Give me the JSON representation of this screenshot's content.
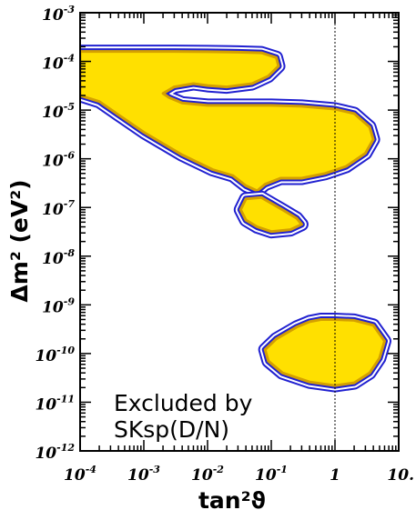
{
  "chart_data": {
    "type": "contour",
    "title": "",
    "xlabel": "tan²ϑ",
    "ylabel": "Δm² (eV²)",
    "x_scale": "log",
    "y_scale": "log",
    "xlim": [
      0.0001,
      10
    ],
    "ylim": [
      1e-12,
      0.001
    ],
    "x_ticks": [
      {
        "value": 0.0001,
        "base": "10",
        "exp": "-4"
      },
      {
        "value": 0.001,
        "base": "10",
        "exp": "-3"
      },
      {
        "value": 0.01,
        "base": "10",
        "exp": "-2"
      },
      {
        "value": 0.1,
        "base": "10",
        "exp": "-1"
      },
      {
        "value": 1,
        "base": "1",
        "exp": ""
      },
      {
        "value": 10,
        "base": "10.",
        "exp": ""
      }
    ],
    "y_ticks": [
      {
        "value": 1e-12,
        "base": "10",
        "exp": "-12"
      },
      {
        "value": 1e-11,
        "base": "10",
        "exp": "-11"
      },
      {
        "value": 1e-10,
        "base": "10",
        "exp": "-10"
      },
      {
        "value": 1e-09,
        "base": "10",
        "exp": "-9"
      },
      {
        "value": 1e-08,
        "base": "10",
        "exp": "-8"
      },
      {
        "value": 1e-07,
        "base": "10",
        "exp": "-7"
      },
      {
        "value": 1e-06,
        "base": "10",
        "exp": "-6"
      },
      {
        "value": 1e-05,
        "base": "10",
        "exp": "-5"
      },
      {
        "value": 0.0001,
        "base": "10",
        "exp": "-4"
      },
      {
        "value": 0.001,
        "base": "10",
        "exp": "-3"
      }
    ],
    "reference_line": {
      "axis": "x",
      "value": 1,
      "style": "dotted"
    },
    "annotation_lines": [
      "Excluded by",
      "SKsp(D/N)"
    ],
    "colors": {
      "fill": "#FFE000",
      "contour_inner": "#D4A000",
      "contour_outer": "#2020D0",
      "background": "#ffffff"
    },
    "regions": [
      {
        "name": "upper-region",
        "points": [
          [
            0.0001,
            0.00016
          ],
          [
            0.0003,
            0.00016
          ],
          [
            0.001,
            0.00016
          ],
          [
            0.003,
            0.00016
          ],
          [
            0.01,
            0.000158
          ],
          [
            0.03,
            0.000155
          ],
          [
            0.07,
            0.00015
          ],
          [
            0.12,
            0.00012
          ],
          [
            0.13,
            8e-05
          ],
          [
            0.09,
            5e-05
          ],
          [
            0.05,
            3.5e-05
          ],
          [
            0.02,
            3e-05
          ],
          [
            0.01,
            3.2e-05
          ],
          [
            0.006,
            3.5e-05
          ],
          [
            0.003,
            3e-05
          ],
          [
            0.002,
            2.2e-05
          ],
          [
            0.0025,
            1.8e-05
          ],
          [
            0.004,
            1.4e-05
          ],
          [
            0.01,
            1.25e-05
          ],
          [
            0.03,
            1.25e-05
          ],
          [
            0.1,
            1.25e-05
          ],
          [
            0.3,
            1.2e-05
          ],
          [
            1,
            1.05e-05
          ],
          [
            2,
            8.5e-06
          ],
          [
            3.5,
            4.5e-06
          ],
          [
            4,
            2.5e-06
          ],
          [
            3,
            1.3e-06
          ],
          [
            1.5,
            7e-07
          ],
          [
            0.7,
            5e-07
          ],
          [
            0.3,
            4e-07
          ],
          [
            0.14,
            4e-07
          ],
          [
            0.08,
            3e-07
          ],
          [
            0.06,
            2.2e-07
          ],
          [
            0.04,
            2.8e-07
          ],
          [
            0.025,
            4.5e-07
          ],
          [
            0.012,
            6e-07
          ],
          [
            0.004,
            1.2e-06
          ],
          [
            0.001,
            3.5e-06
          ],
          [
            0.0004,
            8e-06
          ],
          [
            0.0002,
            1.5e-05
          ],
          [
            0.0001,
            2e-05
          ]
        ]
      },
      {
        "name": "lower-island-upper-region",
        "points": [
          [
            0.04,
            1.5e-07
          ],
          [
            0.07,
            1.6e-07
          ],
          [
            0.15,
            9e-08
          ],
          [
            0.25,
            6e-08
          ],
          [
            0.3,
            4.5e-08
          ],
          [
            0.2,
            3.5e-08
          ],
          [
            0.1,
            3.2e-08
          ],
          [
            0.06,
            4e-08
          ],
          [
            0.04,
            5.5e-08
          ],
          [
            0.033,
            9e-08
          ]
        ]
      },
      {
        "name": "low-dm2-region",
        "points": [
          [
            0.4,
            4.5e-10
          ],
          [
            0.6,
            5e-10
          ],
          [
            1,
            5e-10
          ],
          [
            2,
            4.8e-10
          ],
          [
            4,
            3.8e-10
          ],
          [
            6,
            1.8e-10
          ],
          [
            5,
            8e-11
          ],
          [
            3.5,
            4e-11
          ],
          [
            2,
            2.5e-11
          ],
          [
            1,
            2.2e-11
          ],
          [
            0.4,
            2.6e-11
          ],
          [
            0.15,
            4e-11
          ],
          [
            0.09,
            7e-11
          ],
          [
            0.08,
            1.2e-10
          ],
          [
            0.12,
            2e-10
          ],
          [
            0.25,
            3.5e-10
          ]
        ]
      }
    ]
  }
}
